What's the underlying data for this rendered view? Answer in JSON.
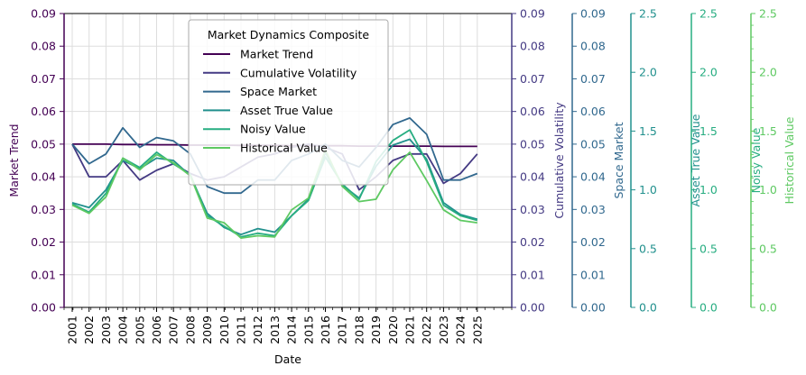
{
  "chart_data": {
    "type": "line",
    "title": "",
    "xlabel": "Date",
    "legend_title": "Market Dynamics Composite",
    "legend_position": "top-center",
    "grid": true,
    "x": [
      "2001",
      "2002",
      "2003",
      "2004",
      "2005",
      "2006",
      "2007",
      "2008",
      "2009",
      "2010",
      "2011",
      "2012",
      "2013",
      "2014",
      "2015",
      "2016",
      "2017",
      "2018",
      "2019",
      "2020",
      "2021",
      "2022",
      "2023",
      "2024",
      "2025"
    ],
    "series": [
      {
        "name": "Market Trend",
        "axis": "left",
        "color": "#440154",
        "values": [
          0.05,
          0.05,
          0.05,
          0.0499,
          0.0499,
          0.0498,
          0.0498,
          0.0497,
          0.0497,
          0.0497,
          0.0496,
          0.0496,
          0.0496,
          0.0495,
          0.0495,
          0.0495,
          0.0495,
          0.0494,
          0.0494,
          0.0494,
          0.0494,
          0.0494,
          0.0493,
          0.0493,
          0.0493
        ]
      },
      {
        "name": "Cumulative Volatility",
        "axis": "right1",
        "color": "#443a83",
        "values": [
          0.05,
          0.04,
          0.04,
          0.045,
          0.039,
          0.042,
          0.044,
          0.041,
          0.039,
          0.04,
          0.043,
          0.046,
          0.047,
          0.049,
          0.05,
          0.049,
          0.047,
          0.036,
          0.04,
          0.045,
          0.047,
          0.047,
          0.038,
          0.041,
          0.047
        ]
      },
      {
        "name": "Space Market",
        "axis": "right2",
        "color": "#31688e",
        "values": [
          0.05,
          0.044,
          0.047,
          0.055,
          0.049,
          0.052,
          0.051,
          0.047,
          0.037,
          0.035,
          0.035,
          0.039,
          0.039,
          0.045,
          0.047,
          0.05,
          0.045,
          0.043,
          0.049,
          0.056,
          0.058,
          0.053,
          0.039,
          0.039,
          0.041
        ]
      },
      {
        "name": "Asset True Value",
        "axis": "right3",
        "color": "#21908d",
        "values": [
          0.89,
          0.85,
          1.0,
          1.25,
          1.18,
          1.27,
          1.25,
          1.12,
          0.8,
          0.68,
          0.62,
          0.67,
          0.64,
          0.78,
          0.92,
          1.32,
          1.04,
          0.93,
          1.2,
          1.38,
          1.43,
          1.26,
          0.89,
          0.79,
          0.75
        ]
      },
      {
        "name": "Noisy Value",
        "axis": "right4",
        "color": "#27ad81",
        "values": [
          0.88,
          0.81,
          0.97,
          1.27,
          1.19,
          1.32,
          1.22,
          1.13,
          0.78,
          0.69,
          0.6,
          0.63,
          0.61,
          0.78,
          0.91,
          1.28,
          1.05,
          0.92,
          1.24,
          1.42,
          1.51,
          1.24,
          0.87,
          0.78,
          0.74
        ]
      },
      {
        "name": "Historical Value",
        "axis": "right5",
        "color": "#5ec962",
        "values": [
          0.87,
          0.8,
          0.94,
          1.27,
          1.17,
          1.3,
          1.23,
          1.12,
          0.76,
          0.72,
          0.59,
          0.61,
          0.6,
          0.83,
          0.93,
          1.34,
          1.03,
          0.9,
          0.92,
          1.17,
          1.32,
          1.08,
          0.83,
          0.74,
          0.72
        ]
      }
    ],
    "axes": {
      "left": {
        "label": "Market Trend",
        "color": "#440154",
        "ylim": [
          0,
          0.09
        ],
        "ticks": [
          "0.00",
          "0.01",
          "0.02",
          "0.03",
          "0.04",
          "0.05",
          "0.06",
          "0.07",
          "0.08",
          "0.09"
        ]
      },
      "right1": {
        "label": "Cumulative Volatility",
        "color": "#443a83",
        "ylim": [
          0,
          0.09
        ],
        "ticks": [
          "0.00",
          "0.01",
          "0.02",
          "0.03",
          "0.04",
          "0.05",
          "0.06",
          "0.07",
          "0.08",
          "0.09"
        ]
      },
      "right2": {
        "label": "Space Market",
        "color": "#31688e",
        "ylim": [
          0,
          0.09
        ],
        "ticks": [
          "0.00",
          "0.01",
          "0.02",
          "0.03",
          "0.04",
          "0.05",
          "0.06",
          "0.07",
          "0.08",
          "0.09"
        ]
      },
      "right3": {
        "label": "Asset True Value",
        "color": "#21908d",
        "ylim": [
          0,
          2.5
        ],
        "ticks": [
          "0.0",
          "0.5",
          "1.0",
          "1.5",
          "2.0",
          "2.5"
        ]
      },
      "right4": {
        "label": "Noisy Value",
        "color": "#27ad81",
        "ylim": [
          0,
          2.5
        ],
        "ticks": [
          "0.0",
          "0.5",
          "1.0",
          "1.5",
          "2.0",
          "2.5"
        ]
      },
      "right5": {
        "label": "Historical Value",
        "color": "#5ec962",
        "ylim": [
          0,
          2.5
        ],
        "ticks": [
          "0.0",
          "0.5",
          "1.0",
          "1.5",
          "2.0",
          "2.5"
        ],
        "minor_ticks": true
      }
    }
  }
}
